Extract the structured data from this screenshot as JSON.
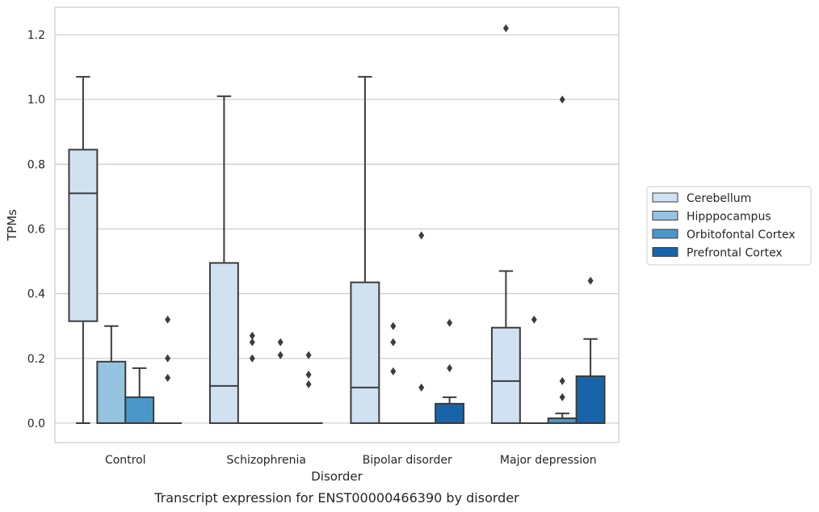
{
  "chart_data": {
    "type": "box",
    "caption": "Transcript expression for ENST00000466390 by disorder",
    "xlabel": "Disorder",
    "ylabel": "TPMs",
    "ylim": [
      -0.06,
      1.285
    ],
    "yticks": [
      0.0,
      0.2,
      0.4,
      0.6,
      0.8,
      1.0,
      1.2
    ],
    "ytick_labels": [
      "0.0",
      "0.2",
      "0.4",
      "0.6",
      "0.8",
      "1.0",
      "1.2"
    ],
    "grid": true,
    "legend_position": "right",
    "categories": [
      "Control",
      "Schizophrenia",
      "Bipolar disorder",
      "Major depression"
    ],
    "series": [
      {
        "name": "Cerebellum",
        "color": "#d0e1f2",
        "boxes": [
          {
            "q1": 0.315,
            "median": 0.71,
            "q3": 0.845,
            "whislo": 0.0,
            "whishi": 1.07,
            "fliers": []
          },
          {
            "q1": 0.0,
            "median": 0.115,
            "q3": 0.495,
            "whislo": 0.0,
            "whishi": 1.01,
            "fliers": []
          },
          {
            "q1": 0.0,
            "median": 0.11,
            "q3": 0.435,
            "whislo": 0.0,
            "whishi": 1.07,
            "fliers": []
          },
          {
            "q1": 0.0,
            "median": 0.13,
            "q3": 0.295,
            "whislo": 0.0,
            "whishi": 0.47,
            "fliers": [
              1.22
            ]
          }
        ]
      },
      {
        "name": "Hipppocampus",
        "color": "#94c4df",
        "boxes": [
          {
            "q1": 0.0,
            "median": 0.0,
            "q3": 0.19,
            "whislo": 0.0,
            "whishi": 0.3,
            "fliers": []
          },
          {
            "q1": 0.0,
            "median": 0.0,
            "q3": 0.0,
            "whislo": 0.0,
            "whishi": 0.0,
            "fliers": [
              0.2,
              0.25,
              0.27
            ]
          },
          {
            "q1": 0.0,
            "median": 0.0,
            "q3": 0.0,
            "whislo": 0.0,
            "whishi": 0.0,
            "fliers": [
              0.16,
              0.25,
              0.3
            ]
          },
          {
            "q1": 0.0,
            "median": 0.0,
            "q3": 0.0,
            "whislo": 0.0,
            "whishi": 0.0,
            "fliers": [
              0.32
            ]
          }
        ]
      },
      {
        "name": "Orbitofontal Cortex",
        "color": "#4a98c9",
        "boxes": [
          {
            "q1": 0.0,
            "median": 0.0,
            "q3": 0.08,
            "whislo": 0.0,
            "whishi": 0.17,
            "fliers": []
          },
          {
            "q1": 0.0,
            "median": 0.0,
            "q3": 0.0,
            "whislo": 0.0,
            "whishi": 0.0,
            "fliers": [
              0.21,
              0.25
            ]
          },
          {
            "q1": 0.0,
            "median": 0.0,
            "q3": 0.0,
            "whislo": 0.0,
            "whishi": 0.0,
            "fliers": [
              0.11,
              0.58
            ]
          },
          {
            "q1": 0.0,
            "median": 0.0,
            "q3": 0.015,
            "whislo": 0.0,
            "whishi": 0.03,
            "fliers": [
              0.08,
              0.13,
              1.0
            ]
          }
        ]
      },
      {
        "name": "Prefrontal Cortex",
        "color": "#1764ab",
        "boxes": [
          {
            "q1": 0.0,
            "median": 0.0,
            "q3": 0.0,
            "whislo": 0.0,
            "whishi": 0.0,
            "fliers": [
              0.14,
              0.2,
              0.32
            ]
          },
          {
            "q1": 0.0,
            "median": 0.0,
            "q3": 0.0,
            "whislo": 0.0,
            "whishi": 0.0,
            "fliers": [
              0.12,
              0.15,
              0.21
            ]
          },
          {
            "q1": 0.0,
            "median": 0.0,
            "q3": 0.06,
            "whislo": 0.0,
            "whishi": 0.08,
            "fliers": [
              0.17,
              0.31
            ]
          },
          {
            "q1": 0.0,
            "median": 0.0,
            "q3": 0.145,
            "whislo": 0.0,
            "whishi": 0.26,
            "fliers": [
              0.44
            ]
          }
        ]
      }
    ]
  }
}
